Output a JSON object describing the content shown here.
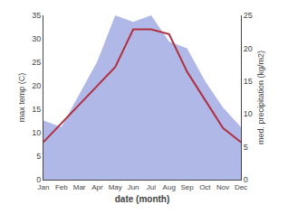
{
  "chart_data": {
    "type": "line",
    "categories": [
      "Jan",
      "Feb",
      "Mar",
      "Apr",
      "May",
      "Jun",
      "Jul",
      "Aug",
      "Sep",
      "Oct",
      "Nov",
      "Dec"
    ],
    "series": [
      {
        "type": "area",
        "color": "#b0b8e8",
        "axis": "y2",
        "values": [
          9,
          8,
          13,
          18,
          25,
          24,
          25,
          21,
          20,
          15,
          11,
          8
        ]
      },
      {
        "type": "line",
        "color": "#b03040",
        "values": [
          8,
          12,
          16,
          20,
          24,
          32,
          32,
          31,
          23,
          17,
          11,
          8
        ]
      }
    ],
    "xlabel": "date (month)",
    "ylabel": "max temp (C)",
    "y2label": "med. precipitation (kg/m2)",
    "ylim": [
      0,
      35
    ],
    "yticks": [
      0,
      5,
      10,
      15,
      20,
      25,
      30,
      35
    ],
    "y2lim": [
      0,
      25
    ],
    "y2ticks": [
      0,
      5,
      10,
      15,
      20,
      25
    ],
    "grid": false
  }
}
